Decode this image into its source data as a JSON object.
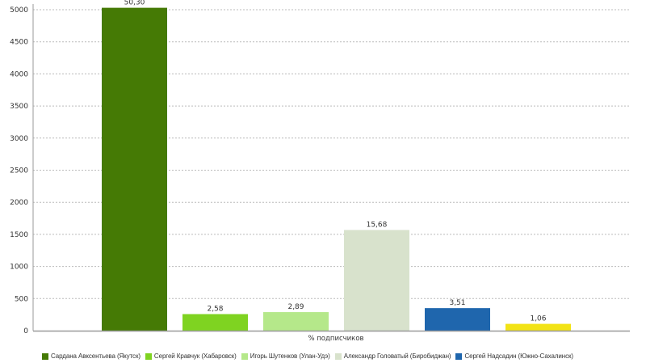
{
  "chart_data": {
    "type": "bar",
    "title": "",
    "xlabel": "% подписчиков",
    "ylabel": "",
    "ylim": [
      0,
      5000
    ],
    "yticks": [
      0,
      500,
      1000,
      1500,
      2000,
      2500,
      3000,
      3500,
      4000,
      4500,
      5000
    ],
    "grid": true,
    "legend_position": "bottom",
    "series": [
      {
        "name": "Сардана Авксентьева (Якутск)",
        "value": 5030,
        "label": "50,30",
        "color": "#457a05"
      },
      {
        "name": "Сергей Кравчук (Хабаровск)",
        "value": 258,
        "label": "2,58",
        "color": "#7fd321"
      },
      {
        "name": "Игорь Шутенков (Улан-Удэ)",
        "value": 289,
        "label": "2,89",
        "color": "#b5e88a"
      },
      {
        "name": "Александр Головатый (Биробиджан)",
        "value": 1568,
        "label": "15,68",
        "color": "#d8e2cc"
      },
      {
        "name": "Сергей Надсадин (Южно-Сахалинск)",
        "value": 351,
        "label": "3,51",
        "color": "#1f66ad"
      },
      {
        "name": "",
        "value": 106,
        "label": "1,06",
        "color": "#f2e316"
      }
    ]
  }
}
